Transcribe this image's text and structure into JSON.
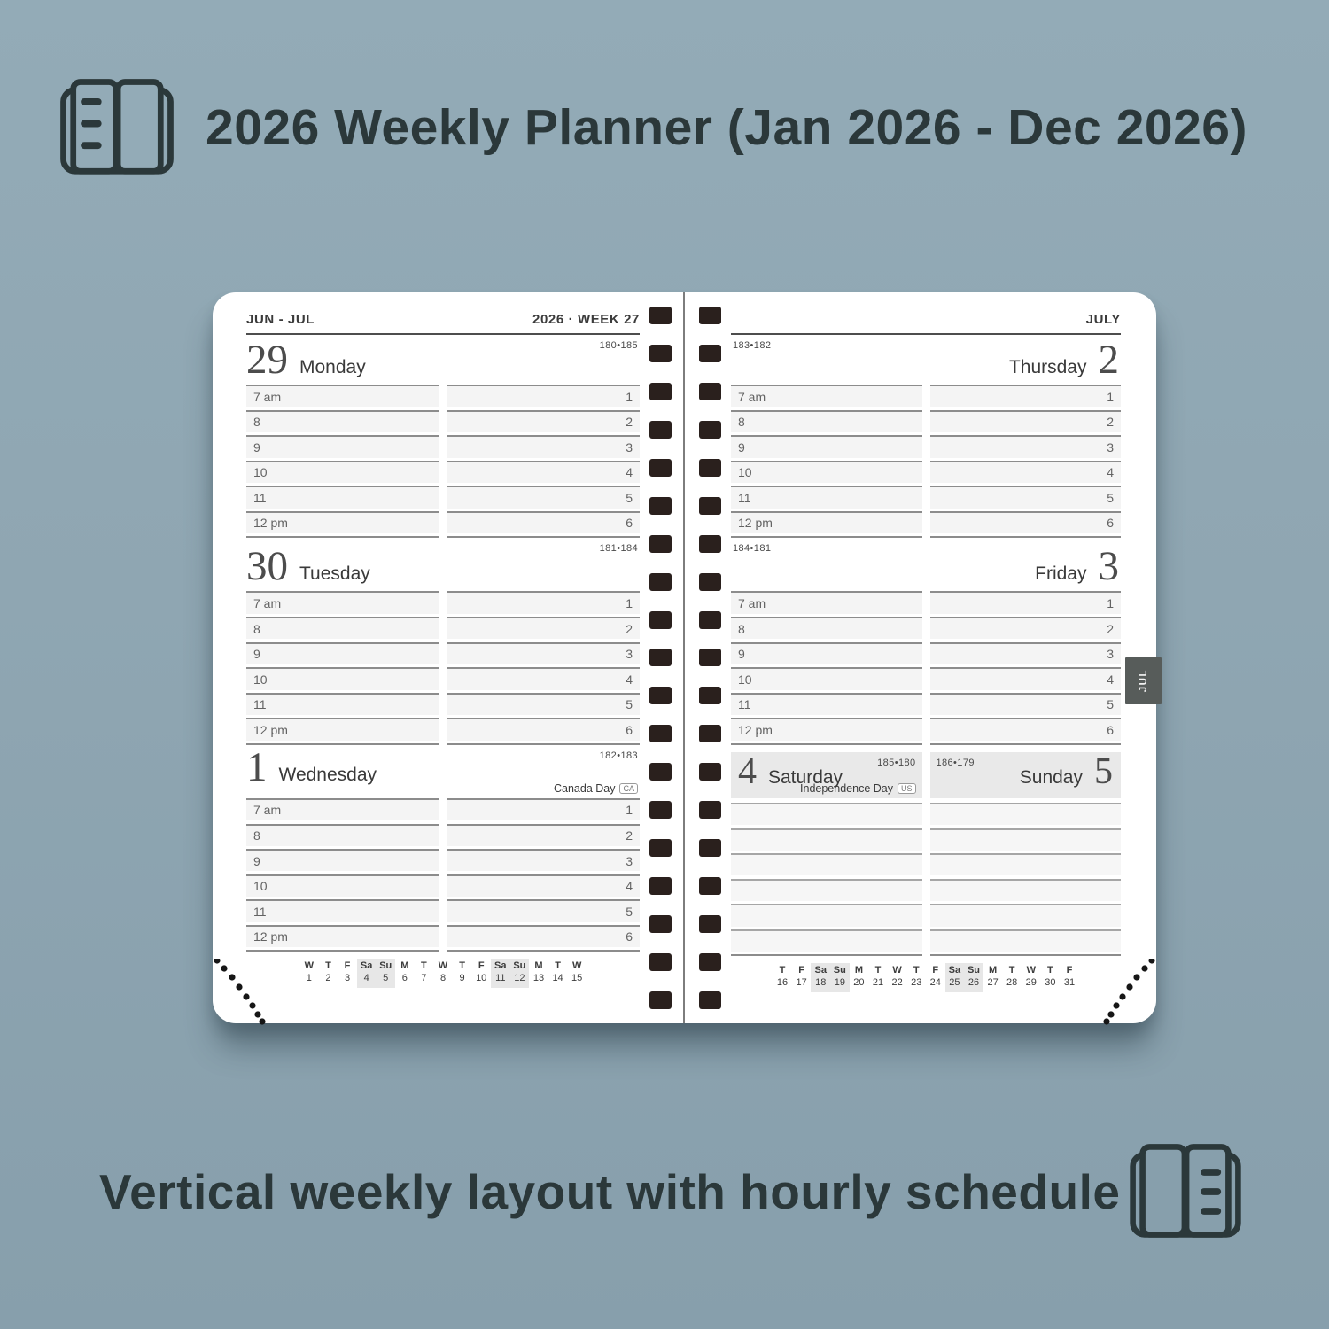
{
  "colors": {
    "bg": "#8fa6b2",
    "bg_top": "#93abb7",
    "bg_bottom": "#879fac",
    "page": "#ffffff",
    "ink": "#2b383a",
    "line": "#8c8c8c",
    "row_fill": "#f4f4f4",
    "row_fill_weekend": "#f6f6f6",
    "hole": "#2a201d",
    "tab_bg": "#575c5a",
    "weekend_head_bg": "#e9e9e9",
    "minical_highlight": "#e7e7e7"
  },
  "header": {
    "title": "2026 Weekly Planner (Jan 2026 - Dec 2026)"
  },
  "footer": {
    "caption": "Vertical weekly layout with hourly schedule"
  },
  "planner": {
    "binding_hole_count": 19,
    "tab_label": "JUL",
    "hours": [
      "7 am",
      "8",
      "9",
      "10",
      "11",
      "12 pm"
    ],
    "afternoon_numbers": [
      "1",
      "2",
      "3",
      "4",
      "5",
      "6"
    ],
    "left_page": {
      "range_label": "JUN - JUL",
      "week_label": "2026 · WEEK 27",
      "days": [
        {
          "number": "29",
          "name": "Monday",
          "page_numbers": "180•185"
        },
        {
          "number": "30",
          "name": "Tuesday",
          "page_numbers": "181•184"
        },
        {
          "number": "1",
          "name": "Wednesday",
          "page_numbers": "182•183",
          "holiday": "Canada Day",
          "holiday_tag": "CA"
        }
      ],
      "mini_calendar": {
        "letters": [
          "W",
          "T",
          "F",
          "Sa",
          "Su",
          "M",
          "T",
          "W",
          "T",
          "F",
          "Sa",
          "Su",
          "M",
          "T",
          "W"
        ],
        "dates": [
          "1",
          "2",
          "3",
          "4",
          "5",
          "6",
          "7",
          "8",
          "9",
          "10",
          "11",
          "12",
          "13",
          "14",
          "15"
        ],
        "weekend_indices": [
          3,
          4,
          10,
          11
        ]
      }
    },
    "right_page": {
      "month_label": "JULY",
      "days": [
        {
          "number": "2",
          "name": "Thursday",
          "page_numbers": "183•182"
        },
        {
          "number": "3",
          "name": "Friday",
          "page_numbers": "184•181"
        }
      ],
      "saturday": {
        "number": "4",
        "name": "Saturday",
        "page_numbers": "185•180",
        "holiday": "Independence Day",
        "holiday_tag": "US"
      },
      "sunday": {
        "number": "5",
        "name": "Sunday",
        "page_numbers": "186•179"
      },
      "mini_calendar": {
        "letters": [
          "T",
          "F",
          "Sa",
          "Su",
          "M",
          "T",
          "W",
          "T",
          "F",
          "Sa",
          "Su",
          "M",
          "T",
          "W",
          "T",
          "F"
        ],
        "dates": [
          "16",
          "17",
          "18",
          "19",
          "20",
          "21",
          "22",
          "23",
          "24",
          "25",
          "26",
          "27",
          "28",
          "29",
          "30",
          "31"
        ],
        "weekend_indices": [
          2,
          3,
          9,
          10
        ]
      }
    }
  }
}
